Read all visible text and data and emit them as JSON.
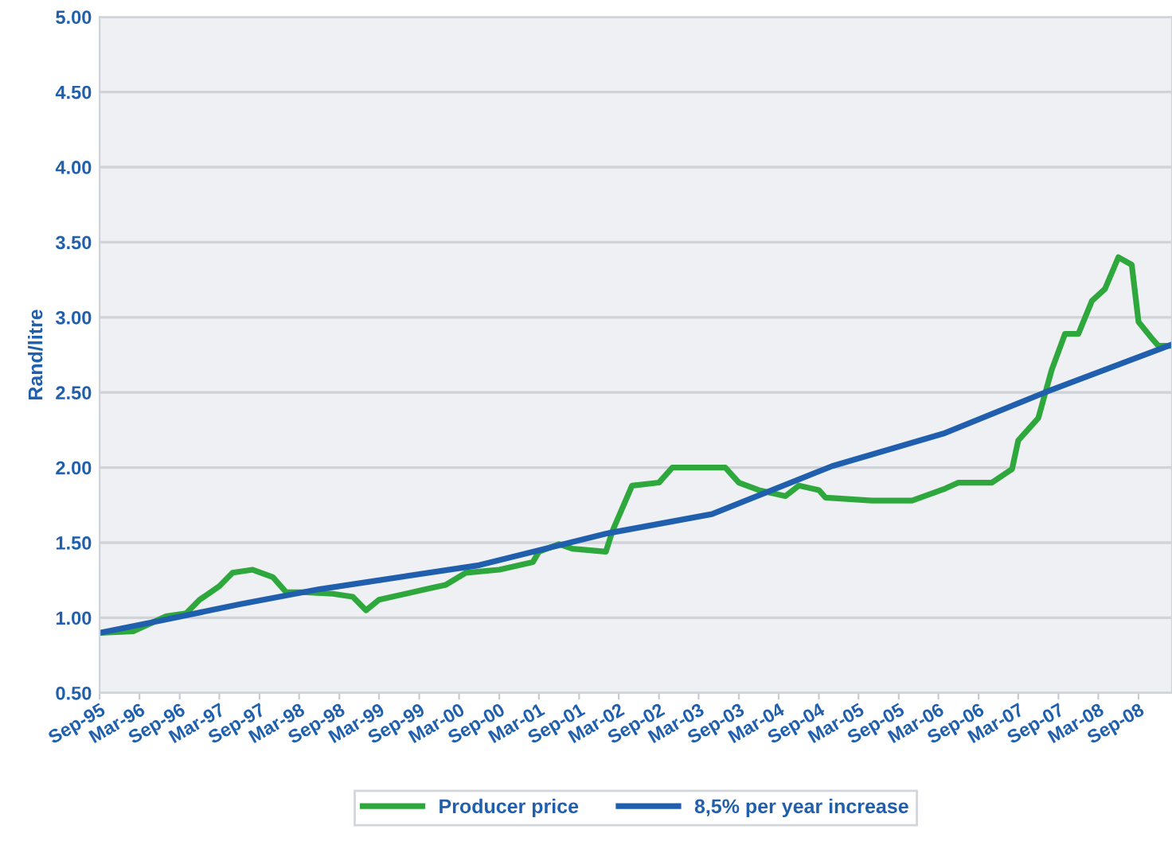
{
  "chart_data": {
    "type": "line",
    "ylabel": "Rand/litre",
    "series": [
      {
        "name": "Producer price",
        "color": "#2ea83c",
        "x": [
          "1995-09",
          "1996-02",
          "1996-05",
          "1996-07",
          "1996-10",
          "1996-12",
          "1997-03",
          "1997-05",
          "1997-08",
          "1997-11",
          "1998-01",
          "1998-04",
          "1998-08",
          "1998-11",
          "1999-01",
          "1999-03",
          "1999-05",
          "1999-10",
          "2000-01",
          "2000-04",
          "2000-09",
          "2001-02",
          "2001-03",
          "2001-06",
          "2001-08",
          "2002-01",
          "2002-02",
          "2002-05",
          "2002-09",
          "2002-11",
          "2003-07",
          "2003-09",
          "2003-12",
          "2004-04",
          "2004-06",
          "2004-09",
          "2004-10",
          "2005-05",
          "2005-11",
          "2006-04",
          "2006-06",
          "2006-11",
          "2007-02",
          "2007-03",
          "2007-06",
          "2007-08",
          "2007-10",
          "2007-12",
          "2008-02",
          "2008-04",
          "2008-06",
          "2008-08",
          "2008-09",
          "2008-11",
          "2008-12",
          "2009-02"
        ],
        "values": [
          0.9,
          0.91,
          0.97,
          1.01,
          1.03,
          1.12,
          1.21,
          1.3,
          1.32,
          1.27,
          1.17,
          1.17,
          1.16,
          1.14,
          1.05,
          1.12,
          1.14,
          1.19,
          1.22,
          1.3,
          1.32,
          1.37,
          1.44,
          1.49,
          1.46,
          1.44,
          1.58,
          1.88,
          1.9,
          2.0,
          2.0,
          1.9,
          1.85,
          1.81,
          1.88,
          1.85,
          1.8,
          1.78,
          1.78,
          1.86,
          1.9,
          1.9,
          1.99,
          2.18,
          2.33,
          2.65,
          2.89,
          2.89,
          3.11,
          3.19,
          3.4,
          3.35,
          2.97,
          2.86,
          2.81,
          2.81
        ]
      },
      {
        "name": "8,5% per year increase",
        "color": "#1f5fae",
        "x": [
          "1995-09",
          "1996-06",
          "1997-06",
          "1998-06",
          "2000-06",
          "2002-01",
          "2003-05",
          "2004-11",
          "2006-04",
          "2007-07",
          "2009-02"
        ],
        "values": [
          0.9,
          0.98,
          1.09,
          1.19,
          1.35,
          1.56,
          1.69,
          2.01,
          2.23,
          2.5,
          2.82
        ]
      }
    ],
    "xlim": [
      "1995-09",
      "2009-02"
    ],
    "xticks": [
      {
        "value": "1995-09",
        "label": "Sep-95"
      },
      {
        "value": "1996-03",
        "label": "Mar-96"
      },
      {
        "value": "1996-09",
        "label": "Sep-96"
      },
      {
        "value": "1997-03",
        "label": "Mar-97"
      },
      {
        "value": "1997-09",
        "label": "Sep-97"
      },
      {
        "value": "1998-03",
        "label": "Mar-98"
      },
      {
        "value": "1998-09",
        "label": "Sep-98"
      },
      {
        "value": "1999-03",
        "label": "Mar-99"
      },
      {
        "value": "1999-09",
        "label": "Sep-99"
      },
      {
        "value": "2000-03",
        "label": "Mar-00"
      },
      {
        "value": "2000-09",
        "label": "Sep-00"
      },
      {
        "value": "2001-03",
        "label": "Mar-01"
      },
      {
        "value": "2001-09",
        "label": "Sep-01"
      },
      {
        "value": "2002-03",
        "label": "Mar-02"
      },
      {
        "value": "2002-09",
        "label": "Sep-02"
      },
      {
        "value": "2003-03",
        "label": "Mar-03"
      },
      {
        "value": "2003-09",
        "label": "Sep-03"
      },
      {
        "value": "2004-03",
        "label": "Mar-04"
      },
      {
        "value": "2004-09",
        "label": "Sep-04"
      },
      {
        "value": "2005-03",
        "label": "Mar-05"
      },
      {
        "value": "2005-09",
        "label": "Sep-05"
      },
      {
        "value": "2006-03",
        "label": "Mar-06"
      },
      {
        "value": "2006-09",
        "label": "Sep-06"
      },
      {
        "value": "2007-03",
        "label": "Mar-07"
      },
      {
        "value": "2007-09",
        "label": "Sep-07"
      },
      {
        "value": "2008-03",
        "label": "Mar-08"
      },
      {
        "value": "2008-09",
        "label": "Sep-08"
      }
    ],
    "ylim": [
      0.5,
      5.0
    ],
    "yticks": [
      {
        "value": 0.5,
        "label": "0.50"
      },
      {
        "value": 1.0,
        "label": "1.00"
      },
      {
        "value": 1.5,
        "label": "1.50"
      },
      {
        "value": 2.0,
        "label": "2.00"
      },
      {
        "value": 2.5,
        "label": "2.50"
      },
      {
        "value": 3.0,
        "label": "3.00"
      },
      {
        "value": 3.5,
        "label": "3.50"
      },
      {
        "value": 4.0,
        "label": "4.00"
      },
      {
        "value": 4.5,
        "label": "4.50"
      },
      {
        "value": 5.0,
        "label": "5.00"
      }
    ],
    "grid": "y",
    "legend": "bottom",
    "marker": "none",
    "line_style": "solid"
  }
}
